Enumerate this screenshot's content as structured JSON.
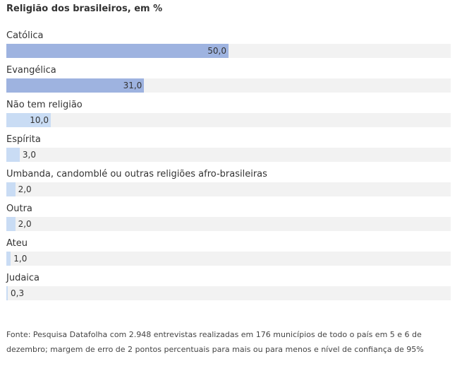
{
  "chart_data": {
    "type": "bar",
    "orientation": "horizontal",
    "title": "Religião dos brasileiros, em %",
    "categories": [
      "Católica",
      "Evangélica",
      "Não tem religião",
      "Espírita",
      "Umbanda, candomblé ou outras religiões afro-brasileiras",
      "Outra",
      "Ateu",
      "Judaica"
    ],
    "values": [
      50.0,
      31.0,
      10.0,
      3.0,
      2.0,
      2.0,
      1.0,
      0.3
    ],
    "value_labels": [
      "50,0",
      "31,0",
      "10,0",
      "3,0",
      "2,0",
      "2,0",
      "1,0",
      "0,3"
    ],
    "xlim": [
      0,
      100
    ],
    "grid": false,
    "legend": "none",
    "colors": {
      "strong": "#9eb3e0",
      "light": "#c9dcf4",
      "track": "#f2f2f2"
    }
  },
  "source_text": "Fonte: Pesquisa Datafolha com 2.948 entrevistas realizadas em 176 municípios de todo o país em 5 e 6 de dezembro; margem de erro de 2 pontos percentuais para mais ou para menos e nível de confiança de 95%"
}
